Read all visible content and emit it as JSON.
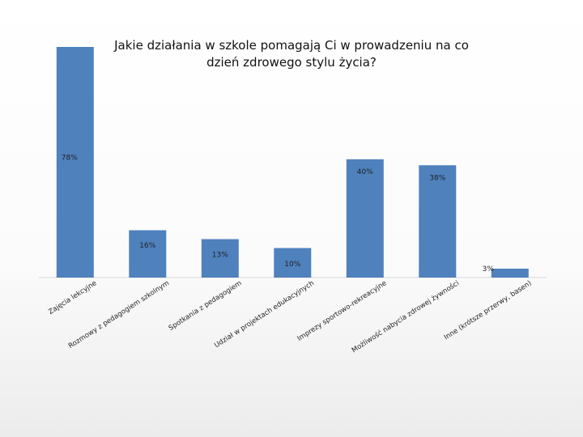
{
  "chart_data": {
    "type": "bar",
    "title": "Jakie działania w szkole pomagają Ci w prowadzeniu na co dzień zdrowego stylu życia?",
    "title_lines": [
      "Jakie działania w szkole pomagają Ci w prowadzeniu na co",
      "dzień zdrowego stylu życia?"
    ],
    "categories": [
      "Zajęcia lekcyjne",
      "Rozmowy z pedagogiem szkolnym",
      "Spotkania z pedagogiem",
      "Udział w projektach edukacyjnych",
      "Imprezy sportowo-rekreacyjne",
      "Możliwość nabycia zdrowej żywności",
      "Inne (krótsze przerwy, basen)"
    ],
    "values": [
      78,
      16,
      13,
      10,
      40,
      38,
      3
    ],
    "value_labels": [
      "78%",
      "16%",
      "13%",
      "10%",
      "40%",
      "38%",
      "3%"
    ],
    "unit": "%",
    "ylim": [
      0,
      78
    ],
    "grid": false,
    "legend": "none",
    "bar_color": "#4f81bd"
  }
}
